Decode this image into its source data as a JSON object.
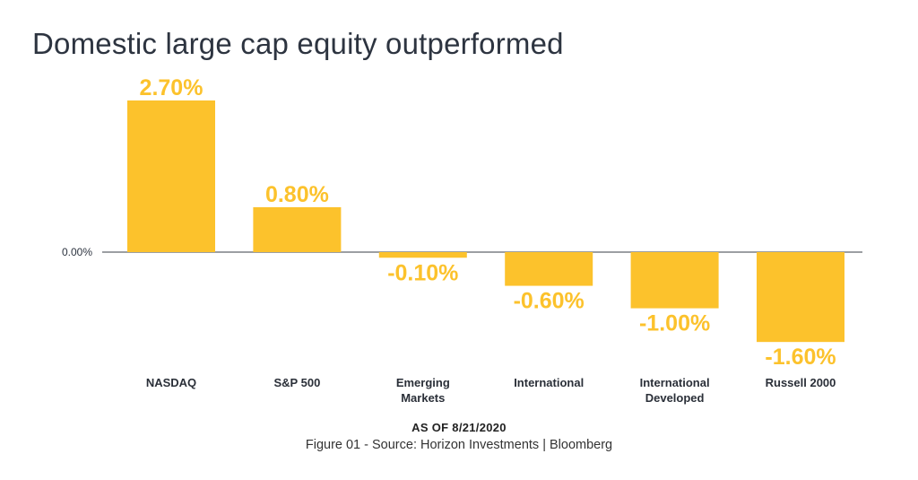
{
  "title": "Domestic large cap equity outperformed",
  "date_note": "AS OF 8/21/2020",
  "source_note": "Figure 01 - Source: Horizon Investments | Bloomberg",
  "chart_data": {
    "type": "bar",
    "categories": [
      [
        "NASDAQ"
      ],
      [
        "S&P 500"
      ],
      [
        "Emerging",
        "Markets"
      ],
      [
        "International"
      ],
      [
        "International",
        "Developed"
      ],
      [
        "Russell 2000"
      ]
    ],
    "values": [
      2.7,
      0.8,
      -0.1,
      -0.6,
      -1.0,
      -1.6
    ],
    "value_labels": [
      "2.70%",
      "0.80%",
      "-0.10%",
      "-0.60%",
      "-1.00%",
      "-1.60%"
    ],
    "zero_line_label": "0.00%",
    "unit": "%",
    "bar_color": "#fcc22c",
    "label_color": "#fcc22c",
    "grid": false,
    "legend": "none"
  }
}
